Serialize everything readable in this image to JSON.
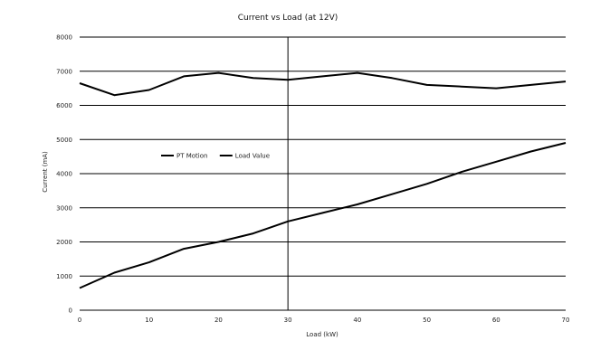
{
  "chart_data": {
    "type": "line",
    "title": "Current vs Load (at 12V)",
    "xlabel": "Load (kW)",
    "ylabel": "Current (mA)",
    "xlim": [
      0,
      70
    ],
    "ylim": [
      0,
      8000
    ],
    "x_ticks": [
      "0",
      "10",
      "20",
      "30",
      "40",
      "50",
      "60",
      "70"
    ],
    "y_ticks": [
      "0",
      "1000",
      "2000",
      "3000",
      "4000",
      "5000",
      "6000",
      "7000",
      "8000"
    ],
    "grid": "horizontal",
    "legend_position": "left",
    "series": [
      {
        "name": "PT Motion",
        "color": "#000000",
        "x": [
          0,
          5,
          10,
          15,
          20,
          25,
          30,
          35,
          40,
          45,
          50,
          55,
          60,
          65,
          70
        ],
        "y": [
          650,
          1100,
          1400,
          1800,
          2000,
          2250,
          2600,
          2850,
          3100,
          3400,
          3700,
          4050,
          4350,
          4650,
          4900
        ]
      },
      {
        "name": "Load Value",
        "color": "#000000",
        "x": [
          0,
          5,
          10,
          15,
          20,
          25,
          30,
          35,
          40,
          45,
          50,
          55,
          60,
          65,
          70
        ],
        "y": [
          6650,
          6300,
          6450,
          6850,
          6950,
          6800,
          6750,
          6850,
          6950,
          6800,
          6600,
          6550,
          6500,
          6600,
          6700
        ]
      }
    ]
  }
}
